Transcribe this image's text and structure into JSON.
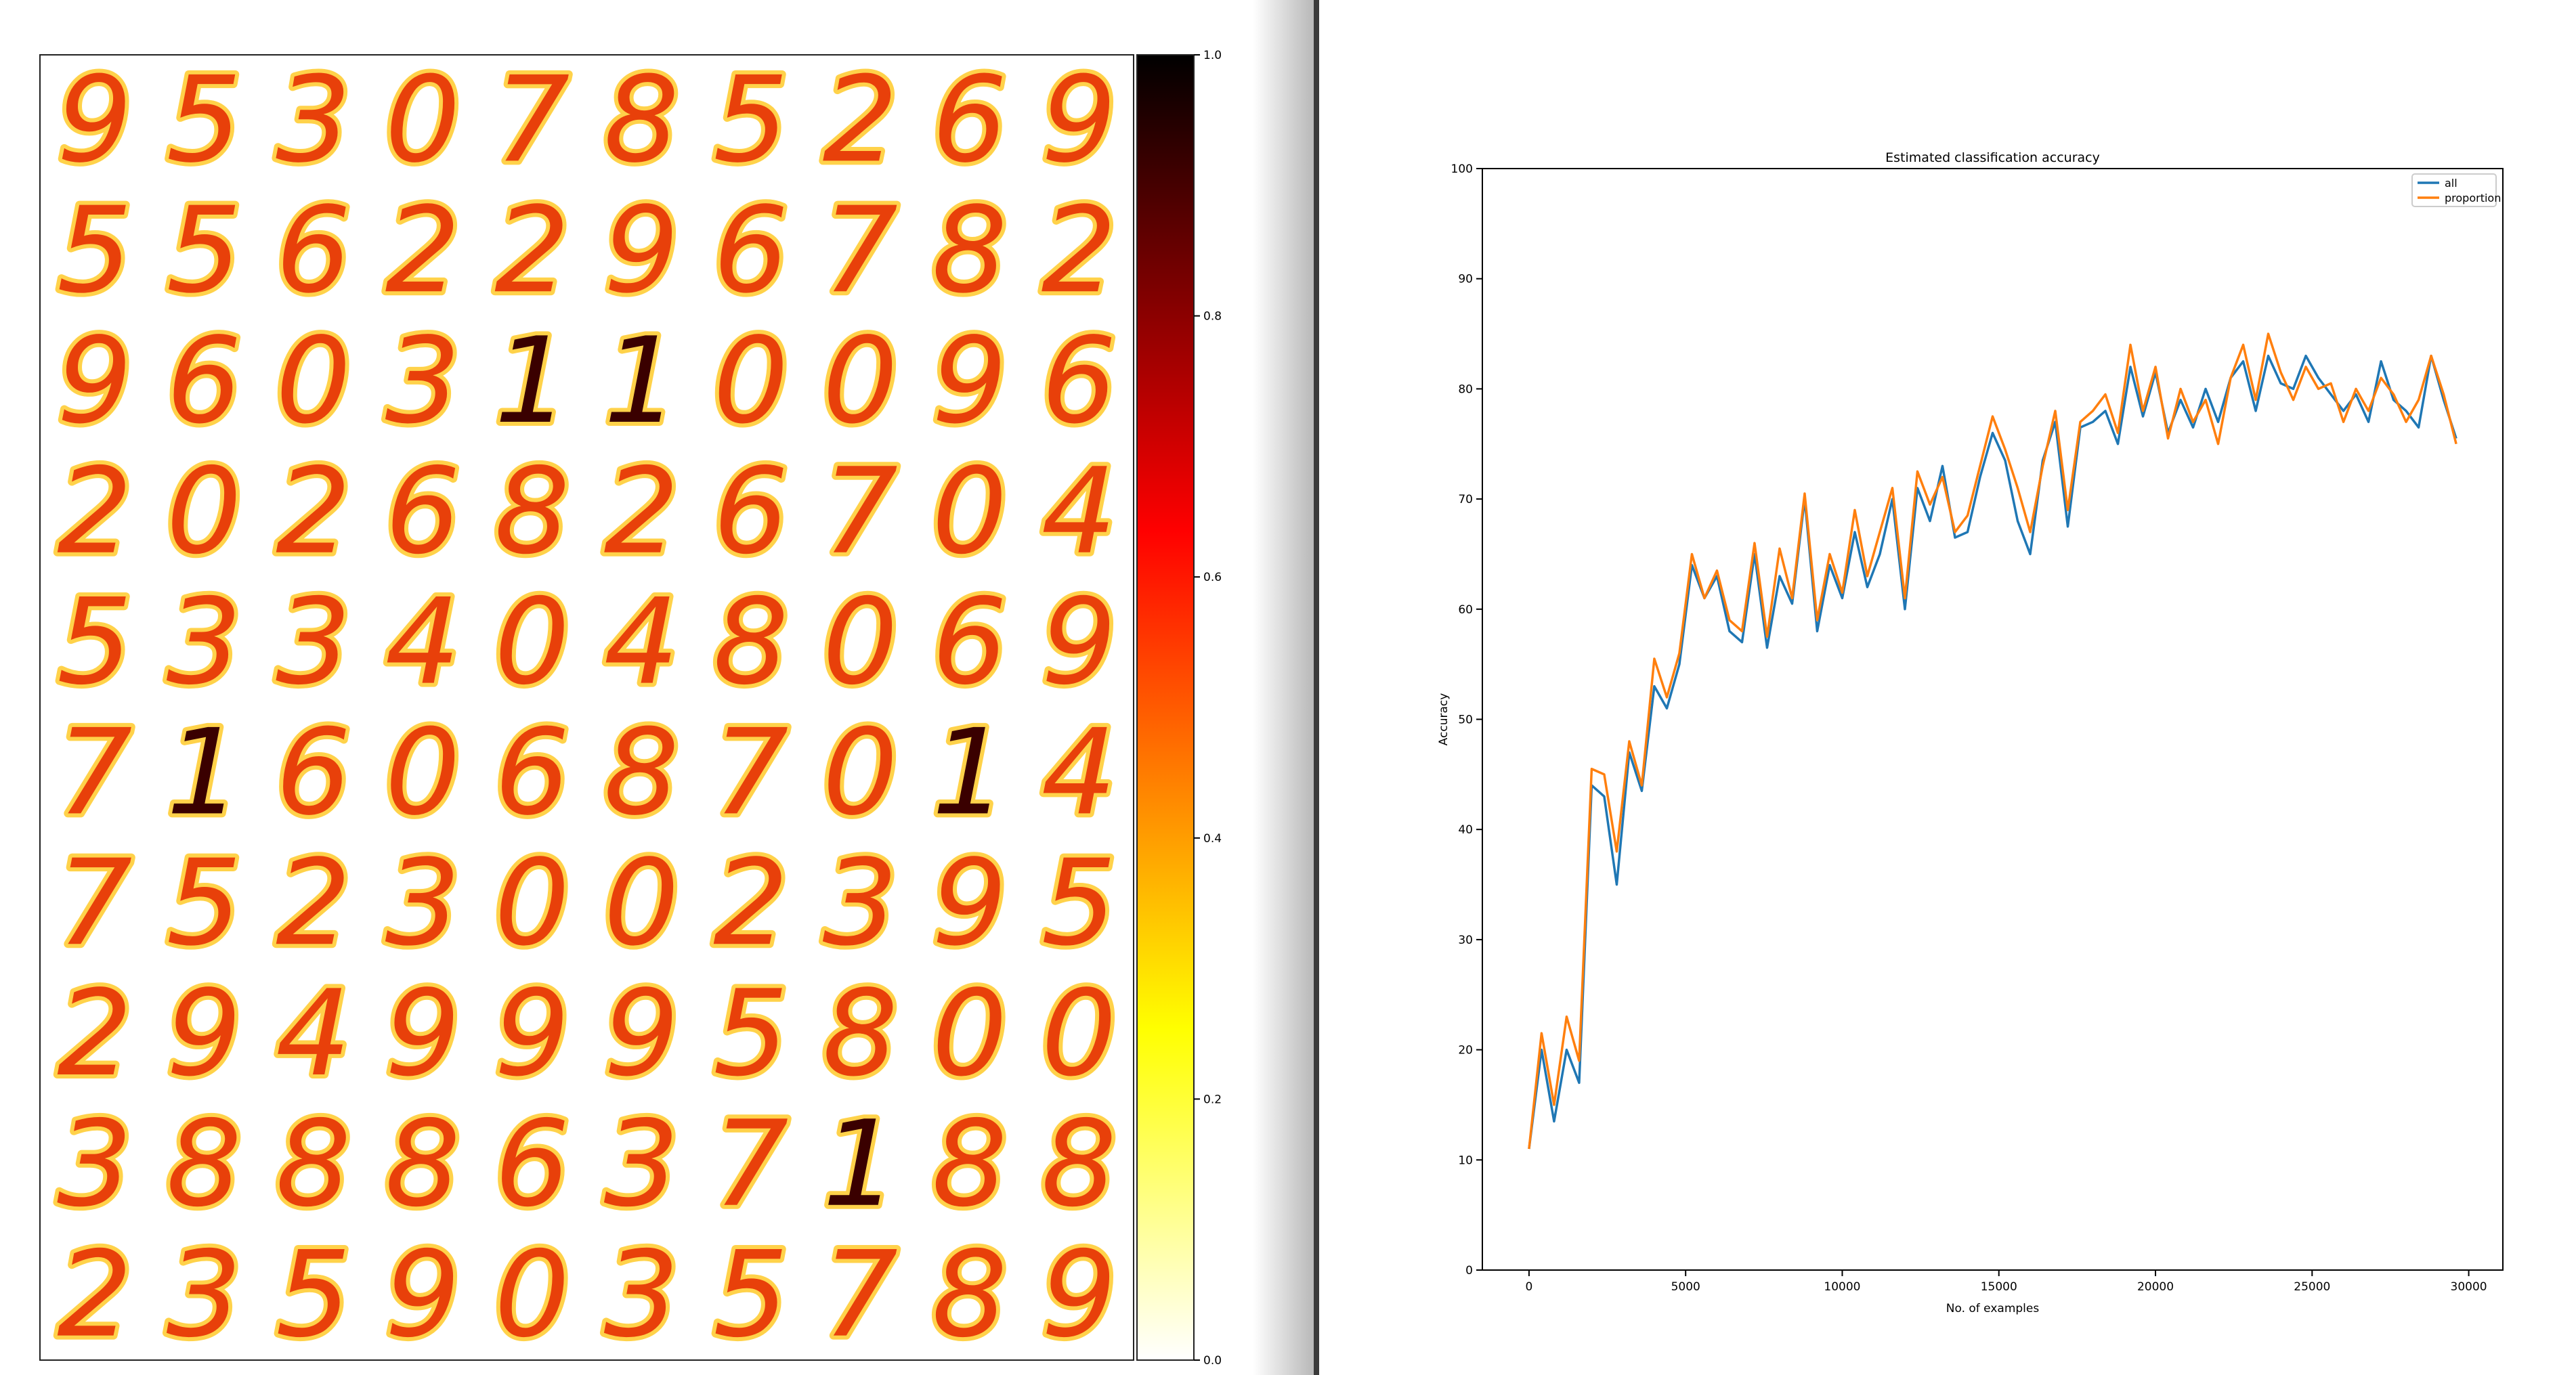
{
  "digit_grid": [
    [
      "9",
      "5",
      "3",
      "0",
      "7",
      "8",
      "5",
      "2",
      "6",
      "9"
    ],
    [
      "5",
      "5",
      "6",
      "2",
      "2",
      "9",
      "6",
      "7",
      "8",
      "2"
    ],
    [
      "9",
      "6",
      "0",
      "3",
      "1",
      "1",
      "0",
      "0",
      "9",
      "6"
    ],
    [
      "2",
      "0",
      "2",
      "6",
      "8",
      "2",
      "6",
      "7",
      "0",
      "4"
    ],
    [
      "5",
      "3",
      "3",
      "4",
      "0",
      "4",
      "8",
      "0",
      "6",
      "9"
    ],
    [
      "7",
      "1",
      "6",
      "0",
      "6",
      "8",
      "7",
      "0",
      "1",
      "4"
    ],
    [
      "7",
      "5",
      "2",
      "3",
      "0",
      "0",
      "2",
      "3",
      "9",
      "5"
    ],
    [
      "2",
      "9",
      "4",
      "9",
      "9",
      "9",
      "5",
      "8",
      "0",
      "0"
    ],
    [
      "3",
      "8",
      "8",
      "8",
      "6",
      "3",
      "7",
      "1",
      "8",
      "8"
    ],
    [
      "2",
      "3",
      "5",
      "9",
      "0",
      "3",
      "5",
      "7",
      "8",
      "9"
    ]
  ],
  "chart_data": [
    {
      "type": "colorbar",
      "zlim": [
        0,
        1
      ],
      "zticks": [
        {
          "value": 0,
          "label": "0.0"
        },
        {
          "value": 0.2,
          "label": "0.2"
        },
        {
          "value": 0.4,
          "label": "0.4"
        },
        {
          "value": 0.6,
          "label": "0.6"
        },
        {
          "value": 0.8,
          "label": "0.8"
        },
        {
          "value": 1,
          "label": "1.0"
        }
      ]
    },
    {
      "type": "line",
      "title": "Estimated classification accuracy",
      "x_label": "No. of examples",
      "y_label": "Accuracy",
      "x": [
        0,
        400,
        800,
        1200,
        1600,
        2000,
        2400,
        2800,
        3200,
        3600,
        4000,
        4400,
        4800,
        5200,
        5600,
        6000,
        6400,
        6800,
        7200,
        7600,
        8000,
        8400,
        8800,
        9200,
        9600,
        10000,
        10400,
        10800,
        11200,
        11600,
        12000,
        12400,
        12800,
        13200,
        13600,
        14000,
        14400,
        14800,
        15200,
        15600,
        16000,
        16400,
        16800,
        17200,
        17600,
        18000,
        18400,
        18800,
        19200,
        19600,
        20000,
        20400,
        20800,
        21200,
        21600,
        22000,
        22400,
        22800,
        23200,
        23600,
        24000,
        24400,
        24800,
        25200,
        25600,
        26000,
        26400,
        26800,
        27200,
        27600,
        28000,
        28400,
        28800,
        29200,
        29600
      ],
      "series": [
        {
          "name": "all",
          "color": "#1f77b4",
          "values": [
            11,
            20,
            13.5,
            20,
            17,
            44,
            43,
            35,
            47,
            43.5,
            53,
            51,
            55,
            64,
            61,
            63,
            58,
            57,
            65,
            56.5,
            63,
            60.5,
            70,
            58,
            64,
            61,
            67,
            62,
            65,
            70,
            60,
            71,
            68,
            73,
            66.5,
            67,
            72,
            76,
            73.5,
            68,
            65,
            73.5,
            77,
            67.5,
            76.5,
            77,
            78,
            75,
            82,
            77.5,
            81.5,
            76,
            79,
            76.5,
            80,
            77,
            81,
            82.5,
            78,
            83,
            80.5,
            80,
            83,
            81,
            79.5,
            78,
            79.5,
            77,
            82.5,
            79,
            78,
            76.5,
            83,
            79,
            75.5
          ]
        },
        {
          "name": "proportion",
          "color": "#ff7f0e",
          "values": [
            11,
            21.5,
            15,
            23,
            19,
            45.5,
            45,
            38,
            48,
            44,
            55.5,
            52,
            56,
            65,
            61,
            63.5,
            59,
            58,
            66,
            57.5,
            65.5,
            61,
            70.5,
            59,
            65,
            61.5,
            69,
            63,
            67,
            71,
            61,
            72.5,
            69.5,
            72,
            67,
            68.5,
            73,
            77.5,
            74.5,
            71,
            67,
            73,
            78,
            69,
            77,
            78,
            79.5,
            76,
            84,
            78,
            82,
            75.5,
            80,
            77,
            79,
            75,
            81,
            84,
            79,
            85,
            81.5,
            79,
            82,
            80,
            80.5,
            77,
            80,
            78,
            81,
            79.5,
            77,
            79,
            83,
            79.5,
            75
          ]
        }
      ],
      "xlim": [
        -1490,
        31090
      ],
      "ylim": [
        0,
        100
      ],
      "xticks": [
        0,
        5000,
        10000,
        15000,
        20000,
        25000,
        30000
      ],
      "yticks": [
        0,
        10,
        20,
        30,
        40,
        50,
        60,
        70,
        80,
        90,
        100
      ],
      "legend": "upper right"
    }
  ]
}
